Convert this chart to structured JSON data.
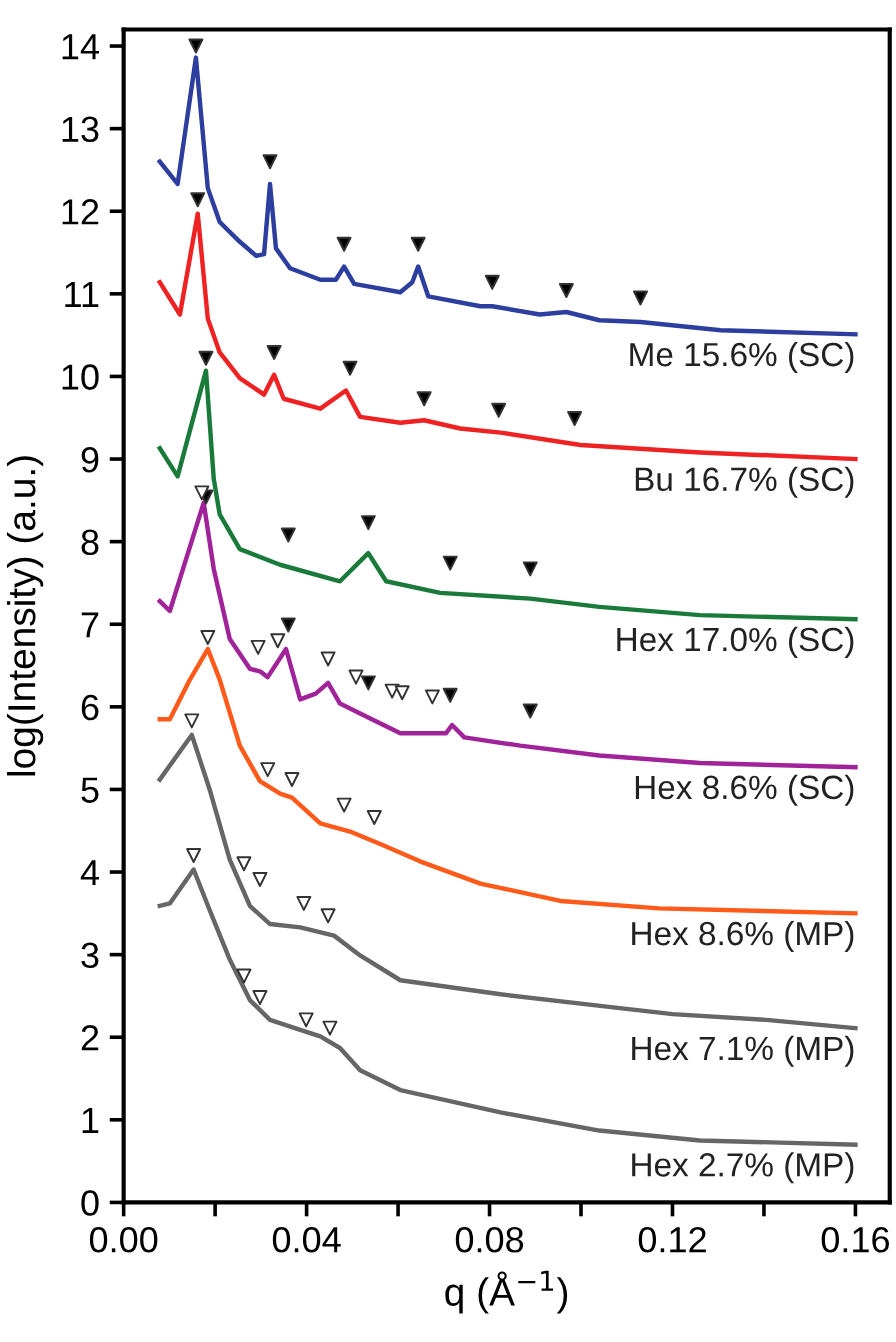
{
  "chart_data": {
    "type": "line",
    "xlabel": "q (Å$^{−1}$)",
    "ylabel": "log(Intensity) (a.u.)",
    "xlim": [
      0,
      0.1675
    ],
    "ylim": [
      0,
      14.2
    ],
    "xticks": [
      {
        "value": 0,
        "label": "0.00"
      },
      {
        "value": 0.02,
        "label": null
      },
      {
        "value": 0.04,
        "label": "0.04"
      },
      {
        "value": 0.06,
        "label": null
      },
      {
        "value": 0.08,
        "label": "0.08"
      },
      {
        "value": 0.1,
        "label": null
      },
      {
        "value": 0.12,
        "label": "0.12"
      },
      {
        "value": 0.14,
        "label": null
      },
      {
        "value": 0.16,
        "label": "0.16"
      }
    ],
    "yticks": [
      0,
      1,
      2,
      3,
      4,
      5,
      6,
      7,
      8,
      9,
      10,
      11,
      12,
      13,
      14
    ],
    "grid": false,
    "legend": false,
    "line_style": "solid",
    "series": [
      {
        "name": "Me 15.6% (SC)",
        "color": "#2c3e9e",
        "x": [
          0.0079,
          0.0118,
          0.0158,
          0.0184,
          0.021,
          0.0254,
          0.029,
          0.0307,
          0.032,
          0.0333,
          0.0364,
          0.043,
          0.0464,
          0.0482,
          0.0504,
          0.0605,
          0.0631,
          0.0644,
          0.0666,
          0.078,
          0.0806,
          0.091,
          0.0968,
          0.104,
          0.113,
          0.1305,
          0.16
        ],
        "values": [
          12.6,
          12.33,
          13.86,
          12.28,
          11.87,
          11.63,
          11.46,
          11.48,
          12.33,
          11.55,
          11.31,
          11.17,
          11.17,
          11.33,
          11.12,
          11.02,
          11.14,
          11.33,
          10.97,
          10.85,
          10.85,
          10.75,
          10.78,
          10.68,
          10.66,
          10.56,
          10.51
        ]
      },
      {
        "name": "Bu 16.7% (SC)",
        "color": "#ee2222",
        "x": [
          0.0079,
          0.0123,
          0.0162,
          0.0184,
          0.021,
          0.0254,
          0.0307,
          0.0329,
          0.035,
          0.043,
          0.0486,
          0.0517,
          0.0605,
          0.0657,
          0.0736,
          0.0824,
          0.0999,
          0.126,
          0.16
        ],
        "values": [
          11.14,
          10.75,
          11.97,
          10.7,
          10.29,
          9.98,
          9.78,
          10.02,
          9.73,
          9.61,
          9.83,
          9.51,
          9.44,
          9.47,
          9.37,
          9.32,
          9.17,
          9.08,
          9.0
        ]
      },
      {
        "name": "Hex 17.0% (SC)",
        "color": "#1a7a3a",
        "x": [
          0.0079,
          0.0118,
          0.018,
          0.0197,
          0.021,
          0.0254,
          0.0342,
          0.0473,
          0.0535,
          0.0574,
          0.0692,
          0.0889,
          0.104,
          0.126,
          0.16
        ],
        "values": [
          9.13,
          8.79,
          10.07,
          8.76,
          8.33,
          7.91,
          7.72,
          7.52,
          7.86,
          7.52,
          7.38,
          7.31,
          7.21,
          7.11,
          7.06
        ]
      },
      {
        "name": "Hex 8.6% (SC)",
        "color": "#a0239a",
        "x": [
          0.0079,
          0.0101,
          0.0175,
          0.0197,
          0.0232,
          0.0276,
          0.0298,
          0.0315,
          0.0355,
          0.0386,
          0.042,
          0.0447,
          0.0473,
          0.0517,
          0.0605,
          0.0705,
          0.0718,
          0.0745,
          0.0867,
          0.104,
          0.126,
          0.16
        ],
        "values": [
          7.28,
          7.16,
          8.47,
          7.67,
          6.82,
          6.46,
          6.43,
          6.36,
          6.7,
          6.09,
          6.16,
          6.29,
          6.04,
          5.92,
          5.68,
          5.68,
          5.78,
          5.63,
          5.53,
          5.41,
          5.32,
          5.27
        ]
      },
      {
        "name": "Hex 8.6% (MP)",
        "color": "#ff5a1a",
        "x": [
          0.0079,
          0.0101,
          0.0145,
          0.0184,
          0.021,
          0.0254,
          0.0298,
          0.0342,
          0.0368,
          0.043,
          0.0495,
          0.0561,
          0.0648,
          0.078,
          0.0955,
          0.117,
          0.16
        ],
        "values": [
          5.85,
          5.85,
          6.33,
          6.7,
          6.33,
          5.53,
          5.1,
          4.95,
          4.9,
          4.59,
          4.49,
          4.34,
          4.13,
          3.86,
          3.65,
          3.56,
          3.5
        ]
      },
      {
        "name": "Hex 7.1% (MP)",
        "color": "#666666",
        "x": [
          0.0079,
          0.0149,
          0.0188,
          0.0232,
          0.0276,
          0.032,
          0.0386,
          0.046,
          0.0517,
          0.0605,
          0.0824,
          0.1042,
          0.12,
          0.1405,
          0.16
        ],
        "values": [
          5.12,
          5.66,
          5.0,
          4.15,
          3.59,
          3.37,
          3.33,
          3.23,
          2.99,
          2.69,
          2.52,
          2.38,
          2.28,
          2.21,
          2.11
        ]
      },
      {
        "name": "Hex 2.7% (MP)",
        "color": "#666666",
        "x": [
          0.0079,
          0.0101,
          0.0153,
          0.0188,
          0.0232,
          0.0276,
          0.032,
          0.0386,
          0.043,
          0.0473,
          0.0517,
          0.0605,
          0.0824,
          0.104,
          0.126,
          0.16
        ],
        "values": [
          3.59,
          3.62,
          4.03,
          3.54,
          2.94,
          2.45,
          2.21,
          2.09,
          2.01,
          1.87,
          1.6,
          1.36,
          1.09,
          0.87,
          0.75,
          0.7
        ]
      },
      {
        "type": "scatter",
        "marker": "triangle",
        "color": "#000000",
        "x": [
          0.0158,
          0.032,
          0.0482,
          0.0644,
          0.0806,
          0.0968,
          0.113,
          0.0162,
          0.0329,
          0.0495,
          0.0657,
          0.082,
          0.0986,
          0.018,
          0.036,
          0.0535,
          0.0714,
          0.0889,
          0.018,
          0.036,
          0.0535,
          0.0714,
          0.0889
        ],
        "values": [
          14.0,
          12.6,
          11.6,
          11.6,
          11.14,
          11.04,
          10.95,
          12.14,
          10.29,
          10.1,
          9.73,
          9.59,
          9.49,
          10.22,
          8.08,
          8.23,
          7.74,
          7.67,
          8.54,
          6.99,
          6.29,
          6.14,
          5.95
        ]
      },
      {
        "type": "scatter",
        "marker": "triangle",
        "color": "#ffffff",
        "x": [
          0.0171,
          0.0294,
          0.0337,
          0.0447,
          0.0508,
          0.0587,
          0.0609,
          0.0675,
          0.0184,
          0.0315,
          0.0368,
          0.0482,
          0.0548,
          0.0149,
          0.0263,
          0.0298,
          0.0394,
          0.0447,
          0.0153,
          0.0263,
          0.0298,
          0.0399,
          0.0451
        ],
        "values": [
          8.59,
          6.72,
          6.8,
          6.58,
          6.36,
          6.19,
          6.17,
          6.12,
          6.84,
          5.24,
          5.12,
          4.81,
          4.66,
          5.83,
          4.1,
          3.91,
          3.62,
          3.47,
          4.2,
          2.74,
          2.48,
          2.21,
          2.11
        ]
      }
    ]
  }
}
